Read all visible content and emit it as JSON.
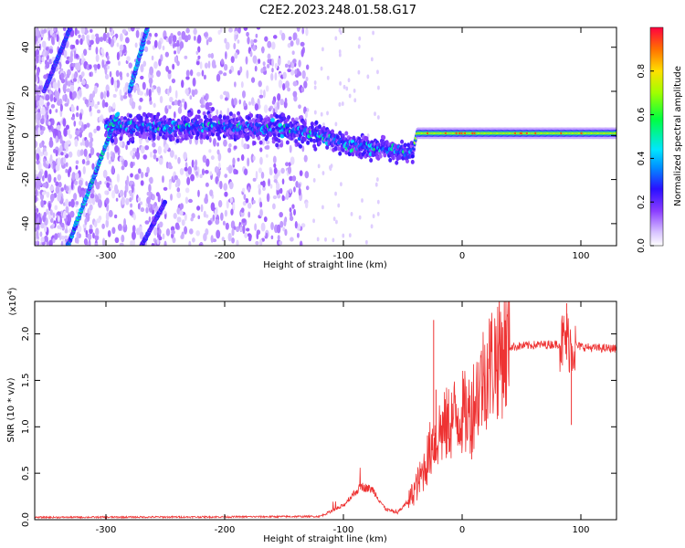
{
  "title": "C2E2.2023.248.01.58.G17",
  "chart_data": [
    {
      "type": "heatmap",
      "xlabel": "Height of straight line (km)",
      "ylabel": "Frequency (Hz)",
      "xlim": [
        -360,
        130
      ],
      "ylim": [
        -50,
        49
      ],
      "x_ticks": [
        -300,
        -200,
        -100,
        0,
        100
      ],
      "x_tick_labels": [
        "-300",
        "-200",
        "-100",
        "0",
        "100"
      ],
      "y_ticks": [
        -40,
        -20,
        0,
        20,
        40
      ],
      "y_tick_labels": [
        "-40",
        "-20",
        "0",
        "20",
        "40"
      ],
      "colorbar": {
        "label": "Normalized spectral amplitude",
        "range": [
          0,
          1
        ],
        "ticks": [
          0.0,
          0.2,
          0.4,
          0.6,
          0.8
        ],
        "tick_labels": [
          "0.0",
          "0.2",
          "0.4",
          "0.6",
          "0.8"
        ],
        "colormap": "rainbow (white-lavender-purple-blue-cyan-green-yellow-red)"
      },
      "features": [
        {
          "name": "carrier",
          "points": [
            [
              -300,
              4
            ],
            [
              -200,
              4
            ],
            [
              -150,
              3
            ],
            [
              -120,
              0
            ],
            [
              -90,
              -5
            ],
            [
              -60,
              -6
            ],
            [
              -42,
              -8
            ],
            [
              -38,
              1
            ],
            [
              130,
              1
            ]
          ]
        },
        {
          "name": "diagonal-streak-main",
          "points": [
            [
              -332,
              -50
            ],
            [
              -290,
              10
            ]
          ]
        },
        {
          "name": "diagonal-streak-upper",
          "points": [
            [
              -280,
              20
            ],
            [
              -265,
              49
            ]
          ]
        },
        {
          "name": "diagonal-streak-upper-left",
          "points": [
            [
              -352,
              20
            ],
            [
              -330,
              49
            ]
          ]
        },
        {
          "name": "diagonal-streak-lower",
          "points": [
            [
              -270,
              -50
            ],
            [
              -250,
              -30
            ]
          ]
        }
      ]
    },
    {
      "type": "line",
      "xlabel": "Height of straight line (km)",
      "ylabel": "SNR (10 * v/v)",
      "y_multiplier": "(x10",
      "y_multiplier_exp": "4",
      "y_multiplier_close": ")",
      "xlim": [
        -360,
        130
      ],
      "ylim": [
        0,
        23500
      ],
      "x_ticks": [
        -300,
        -200,
        -100,
        0,
        100
      ],
      "x_tick_labels": [
        "-300",
        "-200",
        "-100",
        "0",
        "100"
      ],
      "y_ticks": [
        0,
        5000,
        10000,
        15000,
        20000
      ],
      "y_tick_labels": [
        "0.0",
        "0.5",
        "1.0",
        "1.5",
        "2.0"
      ],
      "color": "#ee3333",
      "trend": [
        [
          -360,
          250
        ],
        [
          -200,
          300
        ],
        [
          -120,
          350
        ],
        [
          -100,
          1500
        ],
        [
          -95,
          2300
        ],
        [
          -85,
          3600
        ],
        [
          -75,
          3200
        ],
        [
          -65,
          1200
        ],
        [
          -55,
          700
        ],
        [
          -45,
          2000
        ],
        [
          -35,
          4500
        ],
        [
          -28,
          7000
        ],
        [
          -24,
          9000
        ],
        [
          -22,
          8000
        ],
        [
          -20,
          9500
        ],
        [
          -15,
          9800
        ],
        [
          -10,
          10600
        ],
        [
          -5,
          11200
        ],
        [
          0,
          11500
        ],
        [
          5,
          11200
        ],
        [
          10,
          12800
        ],
        [
          20,
          16000
        ],
        [
          30,
          17800
        ],
        [
          40,
          18600
        ],
        [
          60,
          18800
        ],
        [
          80,
          18900
        ],
        [
          88,
          19300
        ],
        [
          95,
          18700
        ],
        [
          110,
          18500
        ],
        [
          130,
          18400
        ]
      ],
      "spikes": [
        [
          -24,
          21500
        ],
        [
          -22,
          14000
        ],
        [
          88,
          23300
        ],
        [
          92,
          10200
        ],
        [
          8,
          6500
        ]
      ]
    }
  ]
}
